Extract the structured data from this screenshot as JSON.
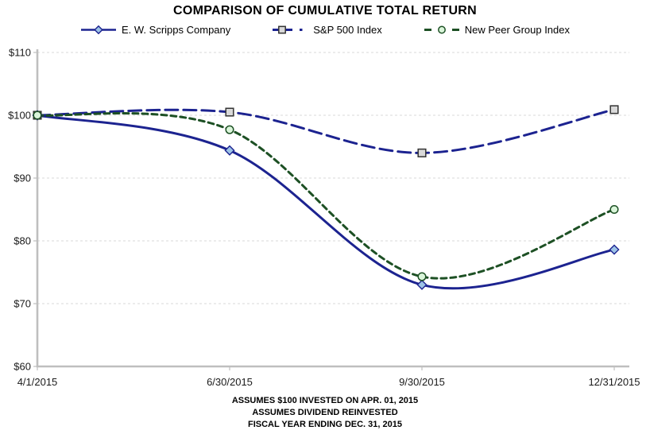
{
  "title": "COMPARISON OF CUMULATIVE TOTAL RETURN",
  "chart_data": {
    "type": "line",
    "smoothed": true,
    "categories": [
      "4/1/2015",
      "6/30/2015",
      "9/30/2015",
      "12/31/2015"
    ],
    "series": [
      {
        "name": "E. W. Scripps Company",
        "values": [
          100,
          94.4,
          73.0,
          78.6
        ],
        "color": "#1c2390",
        "dash": "solid",
        "marker": "diamond",
        "marker_fill": "#9dc3e6",
        "marker_stroke": "#1c2390"
      },
      {
        "name": "S&P 500 Index",
        "values": [
          100,
          100.5,
          94.0,
          100.9
        ],
        "color": "#1c2390",
        "dash": "long-dash",
        "marker": "square",
        "marker_fill": "#d9d9d9",
        "marker_stroke": "#333333"
      },
      {
        "name": "New Peer Group Index",
        "values": [
          100,
          97.7,
          74.3,
          85.0
        ],
        "color": "#1d5024",
        "dash": "short-dash",
        "marker": "circle",
        "marker_fill": "#daf5da",
        "marker_stroke": "#1d5024"
      }
    ],
    "ylim": [
      60,
      110
    ],
    "y_tick_values": [
      60,
      70,
      80,
      90,
      100,
      110
    ],
    "y_tick_labels": [
      "$60",
      "$70",
      "$80",
      "$90",
      "$100",
      "$110"
    ],
    "grid": "horizontal-dashed",
    "legend_position": "top"
  },
  "colors": {
    "axis": "#bfbfbf",
    "grid": "#d9d9d9",
    "label_text": "#1a1a1a"
  },
  "footnotes": [
    "ASSUMES $100 INVESTED ON APR. 01, 2015",
    "ASSUMES DIVIDEND REINVESTED",
    "FISCAL YEAR ENDING DEC. 31, 2015"
  ]
}
